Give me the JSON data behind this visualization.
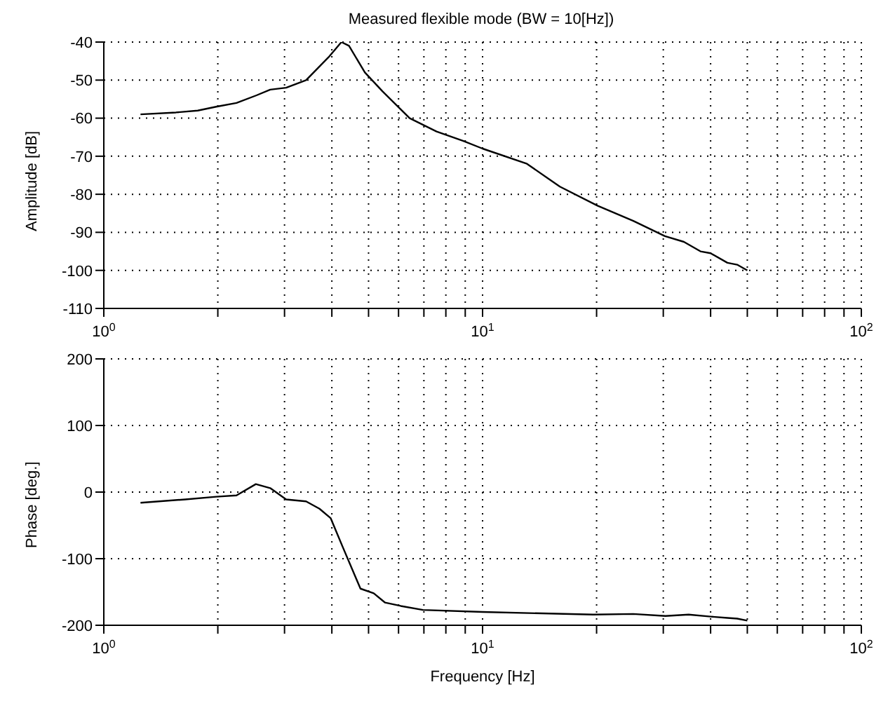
{
  "chart_data": [
    {
      "type": "line",
      "title": "Measured flexible mode (BW = 10[Hz])",
      "ylabel": "Amplitude [dB]",
      "log": "x",
      "grid": true,
      "xlim": [
        1,
        100
      ],
      "xticks": [
        {
          "value": 1,
          "label": "10$^{0}$"
        },
        {
          "value": 2,
          "label": null
        },
        {
          "value": 3,
          "label": null
        },
        {
          "value": 4,
          "label": null
        },
        {
          "value": 5,
          "label": null
        },
        {
          "value": 6,
          "label": null
        },
        {
          "value": 7,
          "label": null
        },
        {
          "value": 8,
          "label": null
        },
        {
          "value": 9,
          "label": null
        },
        {
          "value": 10,
          "label": "10$^{1}$"
        },
        {
          "value": 20,
          "label": null
        },
        {
          "value": 30,
          "label": null
        },
        {
          "value": 40,
          "label": null
        },
        {
          "value": 50,
          "label": null
        },
        {
          "value": 60,
          "label": null
        },
        {
          "value": 70,
          "label": null
        },
        {
          "value": 80,
          "label": null
        },
        {
          "value": 90,
          "label": null
        },
        {
          "value": 100,
          "label": "10$^{2}$"
        }
      ],
      "ylim": [
        -110,
        -40
      ],
      "yticks": [
        -110,
        -100,
        -90,
        -80,
        -70,
        -60,
        -50,
        -40
      ],
      "series": [
        {
          "color": "#000000",
          "x": [
            1.25,
            1.55,
            1.77,
            1.98,
            2.24,
            2.53,
            2.75,
            3.03,
            3.42,
            3.92,
            4.24,
            4.44,
            4.89,
            5.45,
            6.42,
            7.56,
            8.9,
            10,
            13.1,
            16,
            20.1,
            25,
            30.3,
            34,
            37.6,
            40,
            44.3,
            47,
            50
          ],
          "values": [
            -59,
            -58.5,
            -58,
            -57,
            -56,
            -54,
            -52.5,
            -52,
            -50,
            -44,
            -40,
            -41,
            -48,
            -53,
            -60,
            -63.5,
            -66,
            -68,
            -72,
            -78,
            -83,
            -87,
            -91,
            -92.5,
            -95,
            -95.5,
            -98,
            -98.5,
            -100
          ]
        }
      ]
    },
    {
      "type": "line",
      "xlabel": "Frequency [Hz]",
      "ylabel": "Phase [deg.]",
      "log": "x",
      "grid": true,
      "xlim": [
        1,
        100
      ],
      "xticks": [
        {
          "value": 1,
          "label": "10$^{0}$"
        },
        {
          "value": 2,
          "label": null
        },
        {
          "value": 3,
          "label": null
        },
        {
          "value": 4,
          "label": null
        },
        {
          "value": 5,
          "label": null
        },
        {
          "value": 6,
          "label": null
        },
        {
          "value": 7,
          "label": null
        },
        {
          "value": 8,
          "label": null
        },
        {
          "value": 9,
          "label": null
        },
        {
          "value": 10,
          "label": "10$^{1}$"
        },
        {
          "value": 20,
          "label": null
        },
        {
          "value": 30,
          "label": null
        },
        {
          "value": 40,
          "label": null
        },
        {
          "value": 50,
          "label": null
        },
        {
          "value": 60,
          "label": null
        },
        {
          "value": 70,
          "label": null
        },
        {
          "value": 80,
          "label": null
        },
        {
          "value": 90,
          "label": null
        },
        {
          "value": 100,
          "label": "10$^{2}$"
        }
      ],
      "ylim": [
        -200,
        200
      ],
      "yticks": [
        -200,
        -100,
        0,
        100,
        200
      ],
      "series": [
        {
          "color": "#000000",
          "x": [
            1.25,
            1.64,
            1.98,
            2.24,
            2.52,
            2.75,
            3.03,
            3.42,
            3.71,
            3.97,
            4.27,
            4.76,
            5.16,
            5.53,
            6.08,
            6.96,
            10,
            19.6,
            25,
            30.4,
            35,
            40,
            44.3,
            47,
            50
          ],
          "values": [
            -16,
            -11,
            -7,
            -5,
            12,
            6,
            -11,
            -14,
            -25,
            -39,
            -82,
            -145,
            -152,
            -166,
            -171,
            -177,
            -180,
            -184,
            -183,
            -186,
            -184,
            -187,
            -189,
            -190,
            -193
          ]
        }
      ]
    }
  ]
}
